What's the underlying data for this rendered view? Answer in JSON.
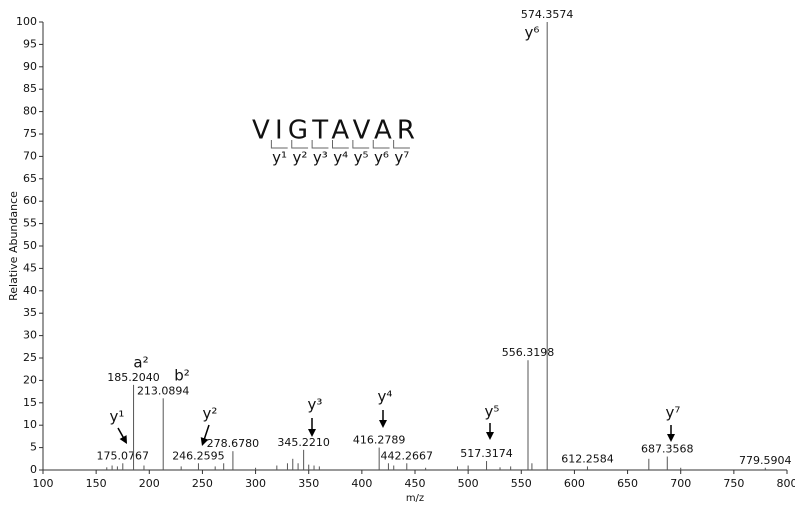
{
  "chart_data": {
    "type": "spectrum",
    "xlabel": "m/z",
    "ylabel": "Relative Abundance",
    "xlim": [
      100,
      800
    ],
    "xticks": [
      100,
      150,
      200,
      250,
      300,
      350,
      400,
      450,
      500,
      550,
      600,
      650,
      700,
      750,
      800
    ],
    "ylim": [
      0,
      100
    ],
    "yticks": [
      0,
      5,
      10,
      15,
      20,
      25,
      30,
      35,
      40,
      45,
      50,
      55,
      60,
      65,
      70,
      75,
      80,
      85,
      90,
      95,
      100
    ],
    "color": "#555555",
    "x": [
      175.0767,
      185.204,
      213.0894,
      246.2595,
      278.678,
      345.221,
      416.2789,
      442.2667,
      517.3174,
      556.3198,
      574.3574,
      612.2584,
      687.3568,
      779.5904
    ],
    "values": [
      1.5,
      19,
      16,
      1.5,
      4.2,
      4.5,
      5,
      1.5,
      2,
      24.5,
      100,
      0.8,
      3,
      0.5
    ],
    "value_labels": [
      "175.0767",
      "185.2040",
      "213.0894",
      "246.2595",
      "278.6780",
      "345.2210",
      "416.2789",
      "442.2667",
      "517.3174",
      "556.3198",
      "574.3574",
      "612.2584",
      "687.3568",
      "779.5904"
    ],
    "minor_x": [
      160,
      165,
      170,
      195,
      230,
      262,
      270,
      300,
      320,
      330,
      335,
      340,
      350,
      355,
      360,
      425,
      430,
      460,
      490,
      500,
      530,
      540,
      560,
      670,
      700
    ],
    "minor_values": [
      0.6,
      1,
      0.8,
      1,
      0.8,
      0.8,
      1.5,
      0.5,
      1,
      1.5,
      2.5,
      1.5,
      1.2,
      1,
      0.8,
      1.5,
      1,
      0.5,
      0.8,
      1,
      0.6,
      0.8,
      1.5,
      2.5,
      0.5
    ],
    "sequence": "VIGTAVAR",
    "fragments": [
      "y¹",
      "y²",
      "y³",
      "y⁴",
      "y⁵",
      "y⁶",
      "y⁷"
    ],
    "annotations": [
      "y¹",
      "y²",
      "y³",
      "y⁴",
      "y⁵",
      "y⁷",
      "a²",
      "b²",
      "y⁶"
    ]
  }
}
